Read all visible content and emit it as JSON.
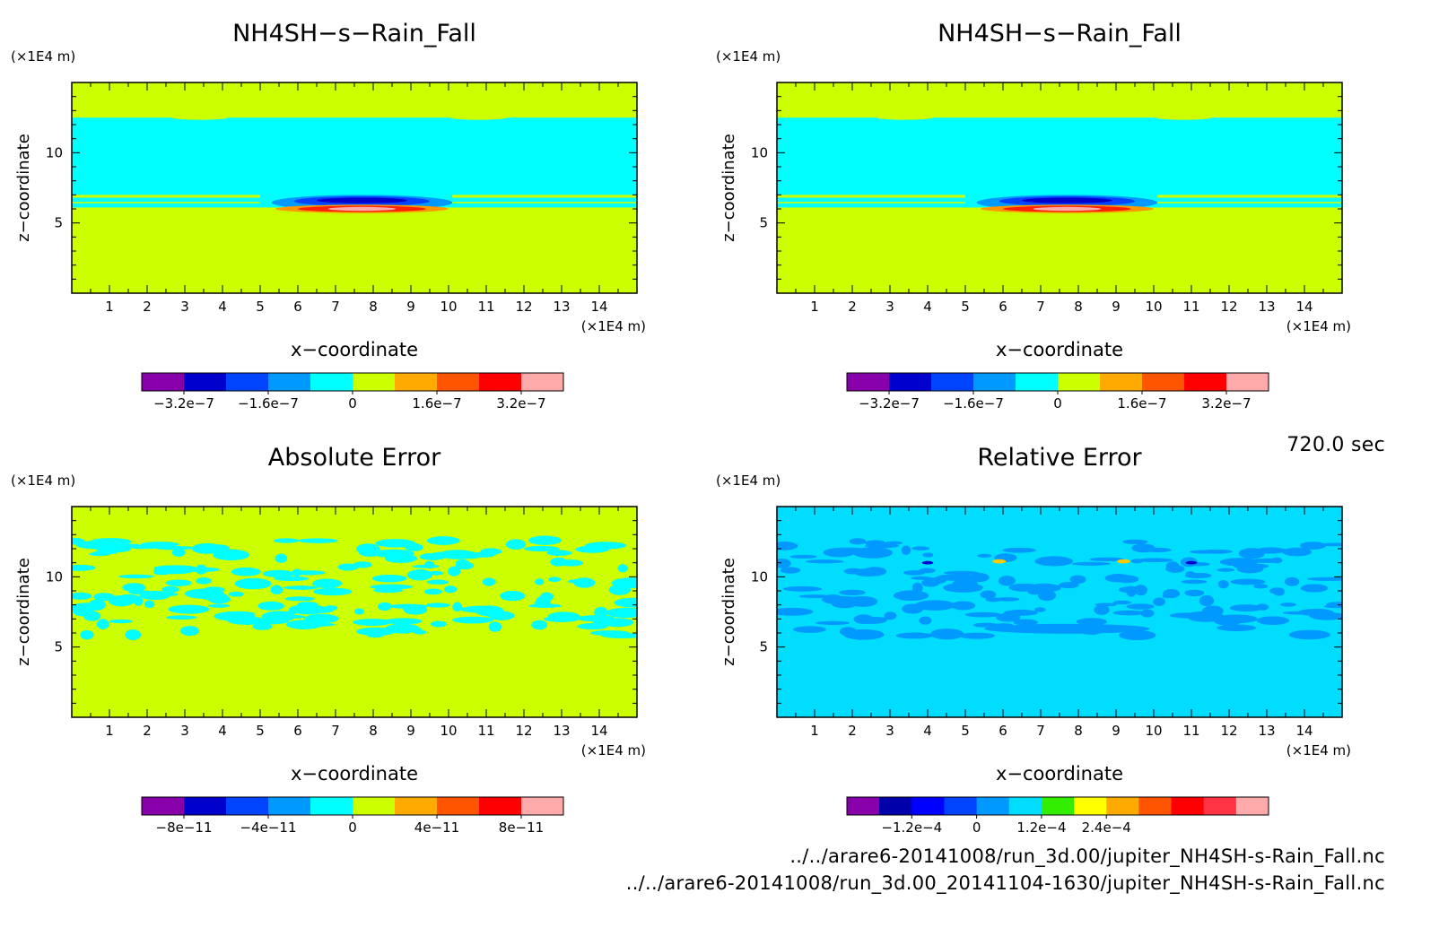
{
  "time_label": "720.0 sec",
  "files": [
    "../../arare6-20141008/run_3d.00/jupiter_NH4SH-s-Rain_Fall.nc",
    "../../arare6-20141008/run_3d.00_20141104-1630/jupiter_NH4SH-s-Rain_Fall.nc"
  ],
  "chart_data": [
    {
      "type": "heatmap",
      "title": "NH4SH−s−Rain_Fall",
      "xlabel": "x−coordinate",
      "ylabel": "z−coordinate",
      "x_unit": "(×1E4 m)",
      "y_unit": "(×1E4 m)",
      "xlim": [
        0,
        15
      ],
      "ylim": [
        0,
        15
      ],
      "x_ticks": [
        1,
        2,
        3,
        4,
        5,
        6,
        7,
        8,
        9,
        10,
        11,
        12,
        13,
        14
      ],
      "y_ticks": [
        5,
        10
      ],
      "background": "#ccff00",
      "features": [
        {
          "kind": "band",
          "z": [
            6.1,
            12.5
          ],
          "color": "#00ffff"
        },
        {
          "kind": "streak",
          "z": [
            6.8,
            7.0
          ],
          "x": [
            0,
            5
          ],
          "color": "#ccff00"
        },
        {
          "kind": "streak",
          "z": [
            6.8,
            7.0
          ],
          "x": [
            10.1,
            15
          ],
          "color": "#ccff00"
        },
        {
          "kind": "streak",
          "z": [
            6.4,
            6.5
          ],
          "x": [
            0,
            5
          ],
          "color": "#ccff00"
        },
        {
          "kind": "streak",
          "z": [
            6.4,
            6.5
          ],
          "x": [
            10.1,
            15
          ],
          "color": "#ccff00"
        },
        {
          "kind": "blob",
          "cx": 7.7,
          "cz": 6.45,
          "rx": 2.4,
          "rz": 0.55,
          "color": "#0099ff"
        },
        {
          "kind": "blob",
          "cx": 7.7,
          "cz": 6.55,
          "rx": 1.8,
          "rz": 0.35,
          "color": "#0044ff"
        },
        {
          "kind": "blob",
          "cx": 7.7,
          "cz": 6.6,
          "rx": 1.2,
          "rz": 0.2,
          "color": "#0000cc"
        },
        {
          "kind": "blob",
          "cx": 7.7,
          "cz": 6.0,
          "rx": 2.3,
          "rz": 0.3,
          "color": "#ff9900"
        },
        {
          "kind": "blob",
          "cx": 7.7,
          "cz": 6.0,
          "rx": 1.7,
          "rz": 0.22,
          "color": "#ff2200"
        },
        {
          "kind": "blob",
          "cx": 7.7,
          "cz": 6.0,
          "rx": 0.9,
          "rz": 0.14,
          "color": "#ffaaaa"
        }
      ],
      "colorbar": {
        "colors": [
          "#8800aa",
          "#0000cc",
          "#0044ff",
          "#0099ff",
          "#00ffff",
          "#ccff00",
          "#ffaa00",
          "#ff5500",
          "#ff0000",
          "#ffaaaa"
        ],
        "labels": [
          "−3.2e−7",
          "−1.6e−7",
          "0",
          "1.6e−7",
          "3.2e−7"
        ],
        "label_bounds": [
          1,
          3,
          5,
          7,
          9
        ]
      }
    },
    {
      "type": "heatmap",
      "title": "NH4SH−s−Rain_Fall",
      "xlabel": "x−coordinate",
      "ylabel": "z−coordinate",
      "x_unit": "(×1E4 m)",
      "y_unit": "(×1E4 m)",
      "xlim": [
        0,
        15
      ],
      "ylim": [
        0,
        15
      ],
      "x_ticks": [
        1,
        2,
        3,
        4,
        5,
        6,
        7,
        8,
        9,
        10,
        11,
        12,
        13,
        14
      ],
      "y_ticks": [
        5,
        10
      ],
      "background": "#ccff00",
      "features": [
        {
          "kind": "band",
          "z": [
            6.1,
            12.5
          ],
          "color": "#00ffff"
        },
        {
          "kind": "streak",
          "z": [
            6.8,
            7.0
          ],
          "x": [
            0,
            5
          ],
          "color": "#ccff00"
        },
        {
          "kind": "streak",
          "z": [
            6.8,
            7.0
          ],
          "x": [
            10.1,
            15
          ],
          "color": "#ccff00"
        },
        {
          "kind": "streak",
          "z": [
            6.4,
            6.5
          ],
          "x": [
            0,
            5
          ],
          "color": "#ccff00"
        },
        {
          "kind": "streak",
          "z": [
            6.4,
            6.5
          ],
          "x": [
            10.1,
            15
          ],
          "color": "#ccff00"
        },
        {
          "kind": "blob",
          "cx": 7.7,
          "cz": 6.45,
          "rx": 2.4,
          "rz": 0.55,
          "color": "#0099ff"
        },
        {
          "kind": "blob",
          "cx": 7.7,
          "cz": 6.55,
          "rx": 1.8,
          "rz": 0.35,
          "color": "#0044ff"
        },
        {
          "kind": "blob",
          "cx": 7.7,
          "cz": 6.6,
          "rx": 1.2,
          "rz": 0.2,
          "color": "#0000cc"
        },
        {
          "kind": "blob",
          "cx": 7.7,
          "cz": 6.0,
          "rx": 2.3,
          "rz": 0.3,
          "color": "#ff9900"
        },
        {
          "kind": "blob",
          "cx": 7.7,
          "cz": 6.0,
          "rx": 1.7,
          "rz": 0.22,
          "color": "#ff2200"
        },
        {
          "kind": "blob",
          "cx": 7.7,
          "cz": 6.0,
          "rx": 0.9,
          "rz": 0.14,
          "color": "#ffaaaa"
        }
      ],
      "colorbar": {
        "colors": [
          "#8800aa",
          "#0000cc",
          "#0044ff",
          "#0099ff",
          "#00ffff",
          "#ccff00",
          "#ffaa00",
          "#ff5500",
          "#ff0000",
          "#ffaaaa"
        ],
        "labels": [
          "−3.2e−7",
          "−1.6e−7",
          "0",
          "1.6e−7",
          "3.2e−7"
        ],
        "label_bounds": [
          1,
          3,
          5,
          7,
          9
        ]
      }
    },
    {
      "type": "heatmap",
      "title": "Absolute Error",
      "xlabel": "x−coordinate",
      "ylabel": "z−coordinate",
      "x_unit": "(×1E4 m)",
      "y_unit": "(×1E4 m)",
      "xlim": [
        0,
        15
      ],
      "ylim": [
        0,
        15
      ],
      "x_ticks": [
        1,
        2,
        3,
        4,
        5,
        6,
        7,
        8,
        9,
        10,
        11,
        12,
        13,
        14
      ],
      "y_ticks": [
        5,
        10
      ],
      "background": "#ccff00",
      "features": [
        {
          "kind": "noise",
          "z": [
            5.8,
            12.6
          ],
          "color": "#00ffff",
          "seed": 7,
          "count": 170
        }
      ],
      "colorbar": {
        "colors": [
          "#8800aa",
          "#0000cc",
          "#0044ff",
          "#0099ff",
          "#00ffff",
          "#ccff00",
          "#ffaa00",
          "#ff5500",
          "#ff0000",
          "#ffaaaa"
        ],
        "labels": [
          "−8e−11",
          "−4e−11",
          "0",
          "4e−11",
          "8e−11"
        ],
        "label_bounds": [
          1,
          3,
          5,
          7,
          9
        ]
      }
    },
    {
      "type": "heatmap",
      "title": "Relative Error",
      "xlabel": "x−coordinate",
      "ylabel": "z−coordinate",
      "x_unit": "(×1E4 m)",
      "y_unit": "(×1E4 m)",
      "xlim": [
        0,
        15
      ],
      "ylim": [
        0,
        15
      ],
      "x_ticks": [
        1,
        2,
        3,
        4,
        5,
        6,
        7,
        8,
        9,
        10,
        11,
        12,
        13,
        14
      ],
      "y_ticks": [
        5,
        10
      ],
      "background": "#00ddff",
      "features": [
        {
          "kind": "noise",
          "z": [
            5.8,
            12.6
          ],
          "color": "#0099ff",
          "seed": 19,
          "count": 150
        },
        {
          "kind": "blob",
          "cx": 7.7,
          "cz": 6.3,
          "rx": 2.2,
          "rz": 0.35,
          "color": "#0099ff"
        },
        {
          "kind": "blob",
          "cx": 4.0,
          "cz": 11.0,
          "rx": 0.15,
          "rz": 0.12,
          "color": "#0000cc"
        },
        {
          "kind": "blob",
          "cx": 11.0,
          "cz": 11.0,
          "rx": 0.15,
          "rz": 0.12,
          "color": "#0000cc"
        },
        {
          "kind": "blob",
          "cx": 5.9,
          "cz": 11.1,
          "rx": 0.18,
          "rz": 0.15,
          "color": "#ffcc00"
        },
        {
          "kind": "blob",
          "cx": 9.2,
          "cz": 11.1,
          "rx": 0.18,
          "rz": 0.15,
          "color": "#ffcc00"
        }
      ],
      "colorbar": {
        "colors": [
          "#8800aa",
          "#0000aa",
          "#0000ff",
          "#0044ff",
          "#0099ff",
          "#00ddff",
          "#33ee00",
          "#ffff00",
          "#ffaa00",
          "#ff5500",
          "#ff0000",
          "#ff3344",
          "#ffaaaa"
        ],
        "labels": [
          "−1.2e−4",
          "0",
          "1.2e−4",
          "2.4e−4"
        ],
        "label_bounds": [
          2,
          4,
          6,
          8
        ]
      }
    }
  ]
}
